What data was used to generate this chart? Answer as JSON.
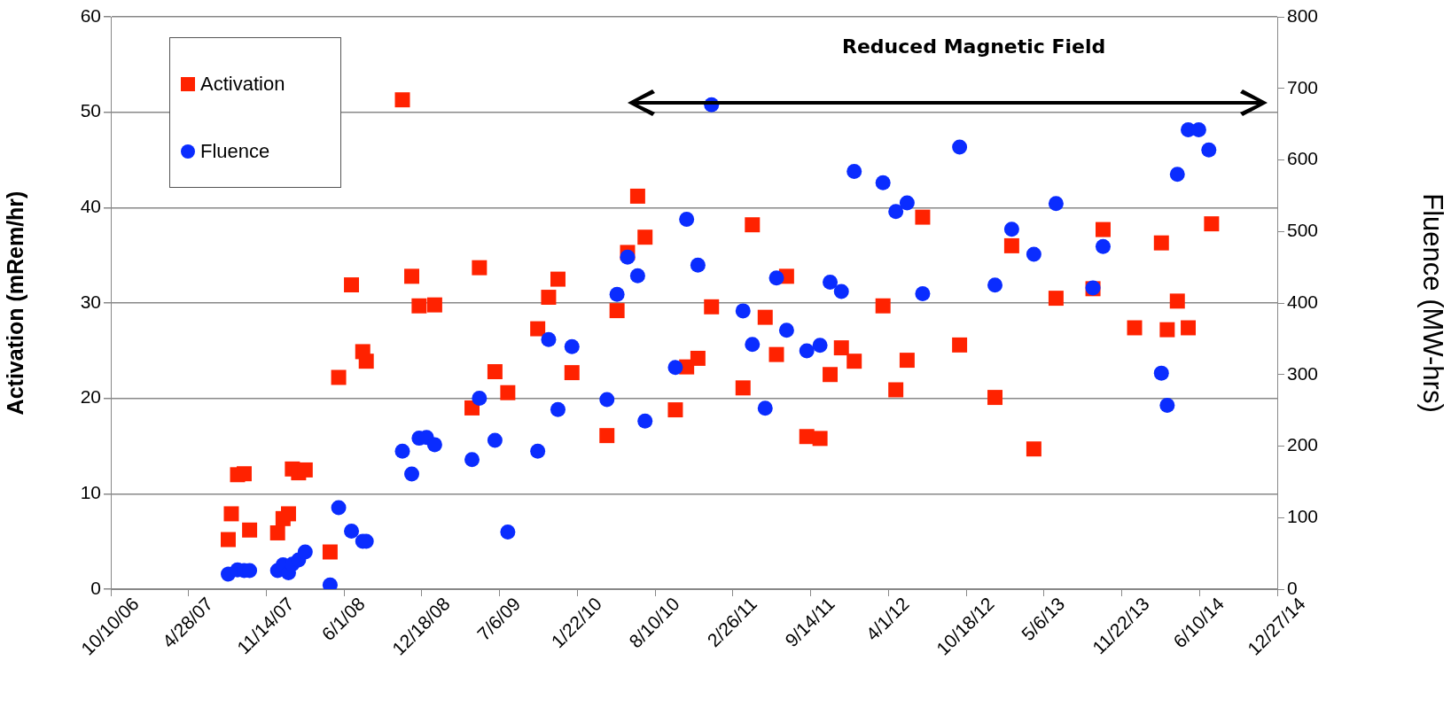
{
  "chart_data": {
    "type": "scatter",
    "ylabel": "Activation (mRem/hr)",
    "y2label": "Fluence (MW-hrs)",
    "annotations": [
      "Reduced Magnetic Field"
    ],
    "xlim": [
      "2006-10-10",
      "2014-12-27"
    ],
    "xticks": [
      {
        "value": "2006-10-10",
        "label": "10/10/06"
      },
      {
        "value": "2007-04-28",
        "label": "4/28/07"
      },
      {
        "value": "2007-11-14",
        "label": "11/14/07"
      },
      {
        "value": "2008-06-01",
        "label": "6/1/08"
      },
      {
        "value": "2008-12-18",
        "label": "12/18/08"
      },
      {
        "value": "2009-07-06",
        "label": "7/6/09"
      },
      {
        "value": "2010-01-22",
        "label": "1/22/10"
      },
      {
        "value": "2010-08-10",
        "label": "8/10/10"
      },
      {
        "value": "2011-02-26",
        "label": "2/26/11"
      },
      {
        "value": "2011-09-14",
        "label": "9/14/11"
      },
      {
        "value": "2012-04-01",
        "label": "4/1/12"
      },
      {
        "value": "2012-10-18",
        "label": "10/18/12"
      },
      {
        "value": "2013-05-06",
        "label": "5/6/13"
      },
      {
        "value": "2013-11-22",
        "label": "11/22/13"
      },
      {
        "value": "2014-06-10",
        "label": "6/10/14"
      },
      {
        "value": "2014-12-27",
        "label": "12/27/14"
      }
    ],
    "ylim": [
      0,
      60
    ],
    "yticks": [
      0,
      10,
      20,
      30,
      40,
      50,
      60
    ],
    "y2lim": [
      0,
      800
    ],
    "y2ticks": [
      0,
      100,
      200,
      300,
      400,
      500,
      600,
      700,
      800
    ],
    "grid": "y",
    "legend": "top left",
    "series": [
      {
        "name": "Activation",
        "color": "#ff2200",
        "marker": "square",
        "x": [
          "2007-08-08",
          "2007-08-16",
          "2007-09-01",
          "2007-09-18",
          "2007-10-02",
          "2007-12-13",
          "2007-12-27",
          "2008-01-10",
          "2008-01-20",
          "2008-02-05",
          "2008-02-22",
          "2008-04-26",
          "2008-05-18",
          "2008-06-20",
          "2008-07-19",
          "2008-07-28",
          "2008-10-29",
          "2008-11-22",
          "2008-12-11",
          "2009-01-20",
          "2009-04-26",
          "2009-05-15",
          "2009-06-24",
          "2009-07-27",
          "2009-10-12",
          "2009-11-09",
          "2009-12-03",
          "2010-01-08",
          "2010-04-08",
          "2010-05-04",
          "2010-05-31",
          "2010-06-26",
          "2010-07-15",
          "2010-10-01",
          "2010-10-30",
          "2010-11-28",
          "2011-01-02",
          "2011-03-24",
          "2011-04-17",
          "2011-05-20",
          "2011-06-18",
          "2011-07-14",
          "2011-09-04",
          "2011-10-08",
          "2011-11-03",
          "2011-12-02",
          "2012-01-04",
          "2012-03-18",
          "2012-04-20",
          "2012-05-19",
          "2012-06-28",
          "2012-10-01",
          "2012-12-31",
          "2013-02-12",
          "2013-04-10",
          "2013-06-06",
          "2013-09-09",
          "2013-10-05",
          "2013-12-25",
          "2014-03-04",
          "2014-03-19",
          "2014-04-14",
          "2014-05-12",
          "2014-07-11"
        ],
        "values": [
          5.2,
          7.9,
          12.0,
          12.1,
          6.2,
          5.9,
          7.4,
          7.9,
          12.6,
          12.2,
          12.5,
          3.9,
          22.2,
          31.9,
          24.9,
          23.9,
          51.3,
          32.8,
          29.7,
          29.8,
          19.0,
          33.7,
          22.8,
          20.6,
          27.3,
          30.6,
          32.5,
          22.7,
          16.1,
          29.2,
          35.3,
          41.2,
          36.9,
          18.8,
          23.3,
          24.2,
          29.6,
          21.1,
          38.2,
          28.5,
          24.6,
          32.8,
          16.0,
          15.8,
          22.5,
          25.3,
          23.9,
          29.7,
          20.9,
          24.0,
          39.0,
          25.6,
          20.1,
          36.0,
          14.7,
          30.5,
          31.5,
          37.7,
          27.4,
          36.3,
          27.2,
          30.2,
          27.4,
          38.3
        ]
      },
      {
        "name": "Fluence",
        "color": "#0a2cff",
        "marker": "circle",
        "axis": "y2",
        "x": [
          "2007-08-08",
          "2007-09-01",
          "2007-09-18",
          "2007-10-02",
          "2007-12-13",
          "2007-12-27",
          "2008-01-10",
          "2008-01-20",
          "2008-02-05",
          "2008-02-22",
          "2008-04-26",
          "2008-05-18",
          "2008-06-20",
          "2008-07-19",
          "2008-07-28",
          "2008-10-29",
          "2008-11-22",
          "2008-12-11",
          "2008-12-30",
          "2009-01-20",
          "2009-04-26",
          "2009-05-15",
          "2009-06-24",
          "2009-07-27",
          "2009-10-12",
          "2009-11-09",
          "2009-12-03",
          "2010-01-08",
          "2010-04-08",
          "2010-05-04",
          "2010-05-31",
          "2010-06-26",
          "2010-07-15",
          "2010-10-01",
          "2010-10-30",
          "2010-11-28",
          "2011-01-02",
          "2011-03-24",
          "2011-04-17",
          "2011-05-20",
          "2011-06-18",
          "2011-07-14",
          "2011-09-04",
          "2011-10-08",
          "2011-11-03",
          "2011-12-02",
          "2012-01-04",
          "2012-03-18",
          "2012-04-20",
          "2012-05-19",
          "2012-06-28",
          "2012-10-01",
          "2012-12-31",
          "2013-02-12",
          "2013-04-10",
          "2013-06-06",
          "2013-09-09",
          "2013-10-05",
          "2014-03-04",
          "2014-03-19",
          "2014-04-14",
          "2014-05-12",
          "2014-06-08",
          "2014-07-04"
        ],
        "values": [
          21,
          27,
          26,
          26,
          26,
          34,
          23,
          35,
          41,
          52,
          6,
          114,
          81,
          67,
          67,
          193,
          161,
          211,
          212,
          202,
          181,
          267,
          208,
          80,
          193,
          349,
          251,
          339,
          265,
          412,
          464,
          438,
          235,
          310,
          517,
          453,
          677,
          389,
          342,
          253,
          435,
          362,
          333,
          341,
          429,
          416,
          584,
          568,
          528,
          540,
          413,
          618,
          425,
          503,
          468,
          539,
          421,
          479,
          302,
          257,
          580,
          642,
          642,
          614
        ]
      }
    ]
  }
}
